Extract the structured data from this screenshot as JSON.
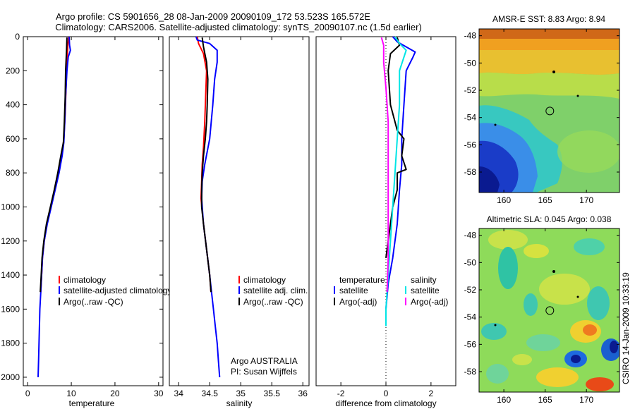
{
  "title": {
    "line1": "Argo profile: CS 5901656_28 08-Jan-2009 20090109_172 53.523S 165.572E",
    "line2": "Climatology: CARS2006. Satellite-adjusted climatology: synTS_20090107.nc (1.5d earlier)"
  },
  "colors": {
    "climatology": "#ff0000",
    "satellite": "#0000ff",
    "argo": "#000000",
    "satellite_salinity": "#00e5e5",
    "argo_adj_salinity": "#ff00ff"
  },
  "chart_data": [
    {
      "type": "line",
      "name": "temperature-profile",
      "xlabel": "temperature",
      "ylabel": "",
      "xlim": [
        -1,
        31
      ],
      "ylim": [
        2050,
        0
      ],
      "xticks": [
        0,
        10,
        20,
        30
      ],
      "yticks": [
        0,
        200,
        400,
        600,
        800,
        1000,
        1200,
        1400,
        1600,
        1800,
        2000
      ],
      "legend": [
        "climatology",
        "satellite-adjusted climatology",
        "Argo(..raw -QC)"
      ],
      "series": [
        {
          "name": "climatology",
          "color": "#ff0000",
          "points": [
            [
              9.4,
              0
            ],
            [
              9.2,
              50
            ],
            [
              9.0,
              150
            ],
            [
              8.8,
              300
            ],
            [
              8.6,
              450
            ],
            [
              8.3,
              600
            ],
            [
              7.8,
              700
            ],
            [
              7.0,
              800
            ],
            [
              6.2,
              900
            ],
            [
              5.3,
              1000
            ],
            [
              4.4,
              1100
            ],
            [
              3.8,
              1200
            ],
            [
              3.4,
              1300
            ],
            [
              3.2,
              1400
            ],
            [
              3.0,
              1500
            ]
          ]
        },
        {
          "name": "satellite-adjusted climatology",
          "color": "#0000ff",
          "points": [
            [
              9.5,
              0
            ],
            [
              9.6,
              50
            ],
            [
              9.8,
              80
            ],
            [
              9.3,
              120
            ],
            [
              9.0,
              200
            ],
            [
              8.7,
              350
            ],
            [
              8.5,
              500
            ],
            [
              8.3,
              620
            ],
            [
              7.9,
              700
            ],
            [
              7.2,
              800
            ],
            [
              6.3,
              900
            ],
            [
              5.4,
              1000
            ],
            [
              4.5,
              1100
            ],
            [
              3.8,
              1200
            ],
            [
              3.4,
              1300
            ],
            [
              3.2,
              1400
            ],
            [
              3.0,
              1500
            ],
            [
              2.8,
              1600
            ],
            [
              2.7,
              1700
            ],
            [
              2.6,
              1800
            ],
            [
              2.5,
              1900
            ],
            [
              2.4,
              2000
            ]
          ]
        },
        {
          "name": "Argo(..raw -QC)",
          "color": "#000000",
          "points": [
            [
              9.0,
              5
            ],
            [
              8.9,
              80
            ],
            [
              8.7,
              200
            ],
            [
              8.6,
              350
            ],
            [
              8.4,
              500
            ],
            [
              8.2,
              620
            ],
            [
              7.6,
              700
            ],
            [
              6.9,
              800
            ],
            [
              6.1,
              900
            ],
            [
              5.2,
              1000
            ],
            [
              4.3,
              1100
            ],
            [
              3.7,
              1200
            ],
            [
              3.3,
              1300
            ],
            [
              3.1,
              1400
            ],
            [
              2.9,
              1500
            ]
          ]
        }
      ]
    },
    {
      "type": "line",
      "name": "salinity-profile",
      "xlabel": "salinity",
      "xlim": [
        33.85,
        36.1
      ],
      "ylim": [
        2050,
        0
      ],
      "xticks": [
        34,
        34.5,
        35,
        35.5,
        36
      ],
      "xticklabels": [
        "34",
        "34.5",
        "35",
        "35.5",
        "36"
      ],
      "legend": [
        "climatology",
        "satellite adj. clim.",
        "Argo(..raw -QC)"
      ],
      "annotation": [
        "Argo AUSTRALIA",
        "PI: Susan Wijffels"
      ],
      "series": [
        {
          "name": "climatology",
          "color": "#ff0000",
          "points": [
            [
              34.3,
              0
            ],
            [
              34.32,
              40
            ],
            [
              34.4,
              100
            ],
            [
              34.45,
              200
            ],
            [
              34.44,
              300
            ],
            [
              34.42,
              500
            ],
            [
              34.4,
              650
            ],
            [
              34.38,
              750
            ],
            [
              34.37,
              850
            ],
            [
              34.36,
              950
            ],
            [
              34.4,
              1100
            ],
            [
              34.45,
              1250
            ],
            [
              34.5,
              1400
            ],
            [
              34.52,
              1500
            ]
          ]
        },
        {
          "name": "satellite adj. clim.",
          "color": "#0000ff",
          "points": [
            [
              34.28,
              0
            ],
            [
              34.3,
              20
            ],
            [
              34.5,
              40
            ],
            [
              34.62,
              80
            ],
            [
              34.62,
              150
            ],
            [
              34.58,
              250
            ],
            [
              34.55,
              400
            ],
            [
              34.5,
              600
            ],
            [
              34.42,
              750
            ],
            [
              34.38,
              850
            ],
            [
              34.37,
              950
            ],
            [
              34.4,
              1100
            ],
            [
              34.45,
              1250
            ],
            [
              34.5,
              1400
            ],
            [
              34.53,
              1500
            ],
            [
              34.56,
              1600
            ],
            [
              34.59,
              1700
            ],
            [
              34.62,
              1800
            ],
            [
              34.64,
              1900
            ],
            [
              34.66,
              2000
            ]
          ]
        },
        {
          "name": "Argo(..raw -QC)",
          "color": "#000000",
          "points": [
            [
              34.38,
              5
            ],
            [
              34.4,
              60
            ],
            [
              34.45,
              150
            ],
            [
              34.47,
              250
            ],
            [
              34.46,
              400
            ],
            [
              34.45,
              500
            ],
            [
              34.43,
              600
            ],
            [
              34.4,
              700
            ],
            [
              34.38,
              800
            ],
            [
              34.37,
              900
            ],
            [
              34.37,
              1000
            ],
            [
              34.4,
              1100
            ],
            [
              34.45,
              1250
            ],
            [
              34.5,
              1400
            ],
            [
              34.52,
              1500
            ]
          ]
        }
      ]
    },
    {
      "type": "line",
      "name": "difference-profile",
      "xlabel": "difference from climatology",
      "xlim": [
        -3.1,
        3.1
      ],
      "ylim": [
        2050,
        0
      ],
      "xticks": [
        -2,
        0,
        2
      ],
      "legend_temperature": {
        "title": "temperature",
        "entries": [
          "satellite",
          "Argo(-adj)"
        ]
      },
      "legend_salinity": {
        "title": "salinity",
        "entries": [
          "satellite",
          "Argo(-adj)"
        ]
      },
      "series": [
        {
          "name": "temperature satellite",
          "color": "#0000ff",
          "points": [
            [
              0.3,
              0
            ],
            [
              0.5,
              30
            ],
            [
              0.9,
              60
            ],
            [
              1.3,
              90
            ],
            [
              1.2,
              120
            ],
            [
              0.9,
              200
            ],
            [
              0.8,
              400
            ],
            [
              0.7,
              600
            ],
            [
              0.7,
              750
            ],
            [
              0.6,
              900
            ],
            [
              0.5,
              1100
            ],
            [
              0.3,
              1300
            ],
            [
              0.1,
              1450
            ],
            [
              0.0,
              1600
            ],
            [
              0.0,
              1700
            ]
          ]
        },
        {
          "name": "temperature Argo(-adj)",
          "color": "#000000",
          "points": [
            [
              0.5,
              5
            ],
            [
              0.6,
              50
            ],
            [
              0.2,
              100
            ],
            [
              0.1,
              200
            ],
            [
              0.2,
              400
            ],
            [
              0.5,
              550
            ],
            [
              0.8,
              600
            ],
            [
              0.7,
              700
            ],
            [
              0.9,
              780
            ],
            [
              0.5,
              800
            ],
            [
              0.5,
              900
            ],
            [
              0.3,
              1000
            ],
            [
              0.2,
              1100
            ],
            [
              0.1,
              1200
            ],
            [
              0.0,
              1300
            ]
          ]
        },
        {
          "name": "salinity satellite",
          "color": "#00e5e5",
          "points": [
            [
              0.4,
              0
            ],
            [
              0.6,
              40
            ],
            [
              0.9,
              80
            ],
            [
              0.8,
              120
            ],
            [
              0.6,
              200
            ],
            [
              0.6,
              400
            ],
            [
              0.5,
              600
            ],
            [
              0.4,
              800
            ],
            [
              0.3,
              1000
            ],
            [
              0.2,
              1200
            ],
            [
              0.1,
              1400
            ],
            [
              0.0,
              1600
            ],
            [
              0.0,
              1700
            ]
          ]
        },
        {
          "name": "salinity Argo(-adj)",
          "color": "#ff00ff",
          "points": [
            [
              -0.2,
              5
            ],
            [
              -0.1,
              50
            ],
            [
              -0.1,
              150
            ],
            [
              0.0,
              300
            ],
            [
              0.1,
              500
            ],
            [
              0.1,
              700
            ],
            [
              0.1,
              900
            ],
            [
              0.1,
              1100
            ],
            [
              0.1,
              1300
            ],
            [
              0.05,
              1500
            ]
          ]
        }
      ]
    },
    {
      "type": "heatmap",
      "name": "amsr-sst-map",
      "title": "AMSR-E SST: 8.83 Argo: 8.94",
      "xlim": [
        157,
        174
      ],
      "ylim": [
        -59.5,
        -47.5
      ],
      "xticks": [
        160,
        165,
        170
      ],
      "yticks": [
        -48,
        -50,
        -52,
        -54,
        -56,
        -58
      ],
      "marker": {
        "lon": 165.572,
        "lat": -53.523
      }
    },
    {
      "type": "heatmap",
      "name": "altimetric-sla-map",
      "title": "Altimetric SLA: 0.045 Argo: 0.038",
      "xlim": [
        157,
        174
      ],
      "ylim": [
        -59.5,
        -47.5
      ],
      "xticks": [
        160,
        165,
        170
      ],
      "yticks": [
        -48,
        -50,
        -52,
        -54,
        -56,
        -58
      ],
      "marker": {
        "lon": 165.572,
        "lat": -53.523
      }
    }
  ],
  "credit": "CSIRO 14-Jan-2009 10:33:19"
}
